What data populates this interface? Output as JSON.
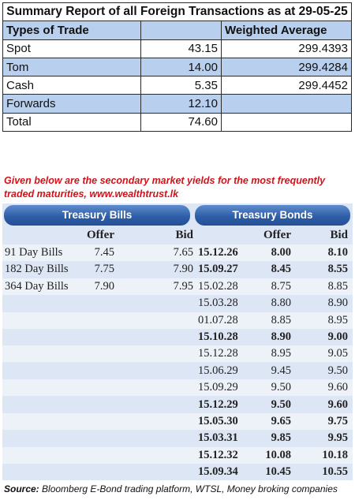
{
  "summary": {
    "title": "Summary Report of all Foreign Transactions as at 29-05-25",
    "header": {
      "type": "Types of Trade",
      "volume": "",
      "wavg": "Weighted Average"
    },
    "rows": [
      {
        "type": "Spot",
        "volume": "43.15",
        "wavg": "299.4393"
      },
      {
        "type": "Tom",
        "volume": "14.00",
        "wavg": "299.4284"
      },
      {
        "type": "Cash",
        "volume": "5.35",
        "wavg": "299.4452"
      },
      {
        "type": "Forwards",
        "volume": "12.10",
        "wavg": ""
      },
      {
        "type": "Total",
        "volume": "74.60",
        "wavg": ""
      }
    ]
  },
  "caption": "Given below are the secondary market yields for the most frequently traded maturities, www.wealthtrust.lk",
  "yields": {
    "bills_title": "Treasury Bills",
    "bonds_title": "Treasury Bonds",
    "col_offer": "Offer",
    "col_bid": "Bid",
    "bills": [
      {
        "name": "91 Day Bills",
        "offer": "7.45",
        "bid": "7.65"
      },
      {
        "name": "182 Day Bills",
        "offer": "7.75",
        "bid": "7.90"
      },
      {
        "name": "364 Day Bills",
        "offer": "7.90",
        "bid": "7.95"
      }
    ],
    "bonds": [
      {
        "date": "15.12.26",
        "offer": "8.00",
        "bid": "8.10",
        "bold": true
      },
      {
        "date": "15.09.27",
        "offer": "8.45",
        "bid": "8.55",
        "bold": true
      },
      {
        "date": "15.02.28",
        "offer": "8.75",
        "bid": "8.85",
        "bold": false
      },
      {
        "date": "15.03.28",
        "offer": "8.80",
        "bid": "8.90",
        "bold": false
      },
      {
        "date": "01.07.28",
        "offer": "8.85",
        "bid": "8.95",
        "bold": false
      },
      {
        "date": "15.10.28",
        "offer": "8.90",
        "bid": "9.00",
        "bold": true
      },
      {
        "date": "15.12.28",
        "offer": "8.95",
        "bid": "9.05",
        "bold": false
      },
      {
        "date": "15.06.29",
        "offer": "9.45",
        "bid": "9.50",
        "bold": false
      },
      {
        "date": "15.09.29",
        "offer": "9.50",
        "bid": "9.60",
        "bold": false
      },
      {
        "date": "15.12.29",
        "offer": "9.50",
        "bid": "9.60",
        "bold": true
      },
      {
        "date": "15.05.30",
        "offer": "9.65",
        "bid": "9.75",
        "bold": true
      },
      {
        "date": "15.03.31",
        "offer": "9.85",
        "bid": "9.95",
        "bold": true
      },
      {
        "date": "15.12.32",
        "offer": "10.08",
        "bid": "10.18",
        "bold": true
      },
      {
        "date": "15.09.34",
        "offer": "10.45",
        "bid": "10.55",
        "bold": true
      }
    ]
  },
  "source": {
    "label": "Source:",
    "text": " Bloomberg E-Bond trading platform, WTSL, Money broking companies"
  }
}
